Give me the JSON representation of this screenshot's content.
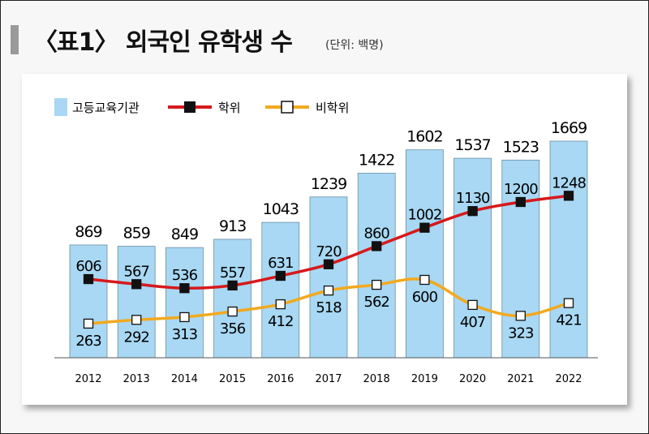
{
  "header": {
    "title": "〈표1〉 외국인 유학생 수",
    "unit": "(단위: 백명)"
  },
  "chart_data": {
    "type": "bar",
    "categories": [
      "2012",
      "2013",
      "2014",
      "2015",
      "2016",
      "2017",
      "2018",
      "2019",
      "2020",
      "2021",
      "2022"
    ],
    "series": [
      {
        "name": "고등교육기관",
        "kind": "bar",
        "color": "#a8d8f3",
        "values": [
          869,
          859,
          849,
          913,
          1043,
          1239,
          1422,
          1602,
          1537,
          1523,
          1669
        ]
      },
      {
        "name": "학위",
        "kind": "line",
        "color": "#d7191c",
        "marker": "filled-square",
        "values": [
          606,
          567,
          536,
          557,
          631,
          720,
          860,
          1002,
          1130,
          1200,
          1248
        ]
      },
      {
        "name": "비학위",
        "kind": "line",
        "color": "#f2a91f",
        "marker": "hollow-square",
        "values": [
          263,
          292,
          313,
          356,
          412,
          518,
          562,
          600,
          407,
          323,
          421
        ]
      }
    ],
    "legend_position": "top-left",
    "ylim": [
      0,
      1750
    ],
    "grid": false
  }
}
